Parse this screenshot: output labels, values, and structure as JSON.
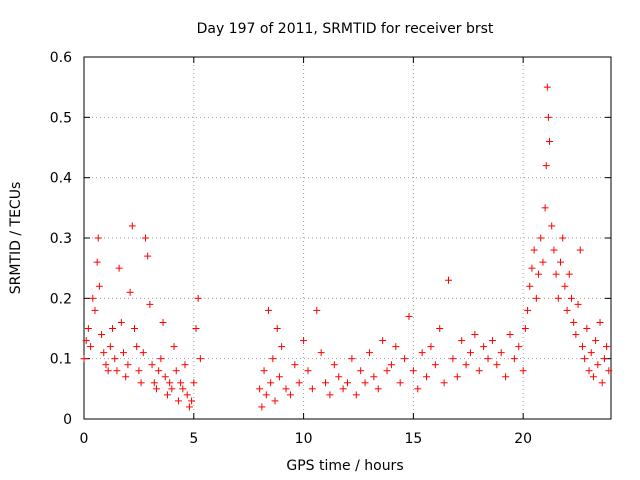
{
  "chart_data": {
    "type": "scatter",
    "title": "Day 197 of 2011, SRMTID for receiver brst",
    "xlabel": "GPS time / hours",
    "ylabel": "SRMTID / TECUs",
    "xlim": [
      0,
      24
    ],
    "ylim": [
      0,
      0.6
    ],
    "xticks": [
      0,
      5,
      10,
      15,
      20
    ],
    "xtick_labels": [
      "0",
      "5",
      "10",
      "15",
      "20"
    ],
    "yticks": [
      0,
      0.1,
      0.2,
      0.3,
      0.4,
      0.5,
      0.6
    ],
    "ytick_labels": [
      "0",
      "0.1",
      "0.2",
      "0.3",
      "0.4",
      "0.5",
      "0.6"
    ],
    "grid": true,
    "marker": "+",
    "color": "#ff0000",
    "series": [
      {
        "name": "SRMTID",
        "x": [
          0.0,
          0.1,
          0.2,
          0.3,
          0.4,
          0.5,
          0.6,
          0.65,
          0.7,
          0.8,
          0.9,
          1.0,
          1.1,
          1.2,
          1.3,
          1.4,
          1.5,
          1.6,
          1.7,
          1.8,
          1.9,
          2.0,
          2.1,
          2.2,
          2.3,
          2.4,
          2.5,
          2.6,
          2.7,
          2.8,
          2.9,
          3.0,
          3.1,
          3.2,
          3.3,
          3.4,
          3.5,
          3.6,
          3.7,
          3.8,
          3.9,
          4.0,
          4.1,
          4.2,
          4.3,
          4.4,
          4.5,
          4.6,
          4.7,
          4.8,
          4.9,
          5.0,
          5.1,
          5.2,
          5.3,
          8.0,
          8.1,
          8.2,
          8.3,
          8.4,
          8.5,
          8.6,
          8.7,
          8.8,
          8.9,
          9.0,
          9.2,
          9.4,
          9.6,
          9.8,
          10.0,
          10.2,
          10.4,
          10.6,
          10.8,
          11.0,
          11.2,
          11.4,
          11.6,
          11.8,
          12.0,
          12.2,
          12.4,
          12.6,
          12.8,
          13.0,
          13.2,
          13.4,
          13.6,
          13.8,
          14.0,
          14.2,
          14.4,
          14.6,
          14.8,
          15.0,
          15.2,
          15.4,
          15.6,
          15.8,
          16.0,
          16.2,
          16.4,
          16.6,
          16.8,
          17.0,
          17.2,
          17.4,
          17.6,
          17.8,
          18.0,
          18.2,
          18.4,
          18.6,
          18.8,
          19.0,
          19.2,
          19.4,
          19.6,
          19.8,
          20.0,
          20.1,
          20.2,
          20.3,
          20.4,
          20.5,
          20.6,
          20.7,
          20.8,
          20.9,
          21.0,
          21.05,
          21.1,
          21.15,
          21.2,
          21.3,
          21.4,
          21.5,
          21.6,
          21.7,
          21.8,
          21.9,
          22.0,
          22.1,
          22.2,
          22.3,
          22.4,
          22.5,
          22.6,
          22.7,
          22.8,
          22.9,
          23.0,
          23.1,
          23.2,
          23.3,
          23.4,
          23.5,
          23.6,
          23.7,
          23.8,
          23.9
        ],
        "y": [
          0.1,
          0.13,
          0.15,
          0.12,
          0.2,
          0.18,
          0.26,
          0.3,
          0.22,
          0.14,
          0.11,
          0.09,
          0.08,
          0.12,
          0.15,
          0.1,
          0.08,
          0.25,
          0.16,
          0.11,
          0.07,
          0.09,
          0.21,
          0.32,
          0.15,
          0.12,
          0.08,
          0.06,
          0.11,
          0.3,
          0.27,
          0.19,
          0.09,
          0.06,
          0.05,
          0.08,
          0.1,
          0.16,
          0.07,
          0.04,
          0.06,
          0.05,
          0.12,
          0.08,
          0.03,
          0.06,
          0.05,
          0.09,
          0.04,
          0.02,
          0.03,
          0.06,
          0.15,
          0.2,
          0.1,
          0.05,
          0.02,
          0.08,
          0.04,
          0.18,
          0.06,
          0.1,
          0.03,
          0.15,
          0.07,
          0.12,
          0.05,
          0.04,
          0.09,
          0.06,
          0.13,
          0.08,
          0.05,
          0.18,
          0.11,
          0.06,
          0.04,
          0.09,
          0.07,
          0.05,
          0.06,
          0.1,
          0.04,
          0.08,
          0.06,
          0.11,
          0.07,
          0.05,
          0.13,
          0.08,
          0.09,
          0.12,
          0.06,
          0.1,
          0.17,
          0.08,
          0.05,
          0.11,
          0.07,
          0.12,
          0.09,
          0.15,
          0.06,
          0.23,
          0.1,
          0.07,
          0.13,
          0.09,
          0.11,
          0.14,
          0.08,
          0.12,
          0.1,
          0.13,
          0.09,
          0.11,
          0.07,
          0.14,
          0.1,
          0.12,
          0.08,
          0.15,
          0.18,
          0.22,
          0.25,
          0.28,
          0.2,
          0.24,
          0.3,
          0.26,
          0.35,
          0.42,
          0.55,
          0.5,
          0.46,
          0.32,
          0.28,
          0.24,
          0.2,
          0.26,
          0.3,
          0.22,
          0.18,
          0.24,
          0.2,
          0.16,
          0.14,
          0.19,
          0.28,
          0.12,
          0.1,
          0.15,
          0.08,
          0.11,
          0.07,
          0.13,
          0.09,
          0.16,
          0.06,
          0.1,
          0.12,
          0.08
        ]
      }
    ]
  }
}
